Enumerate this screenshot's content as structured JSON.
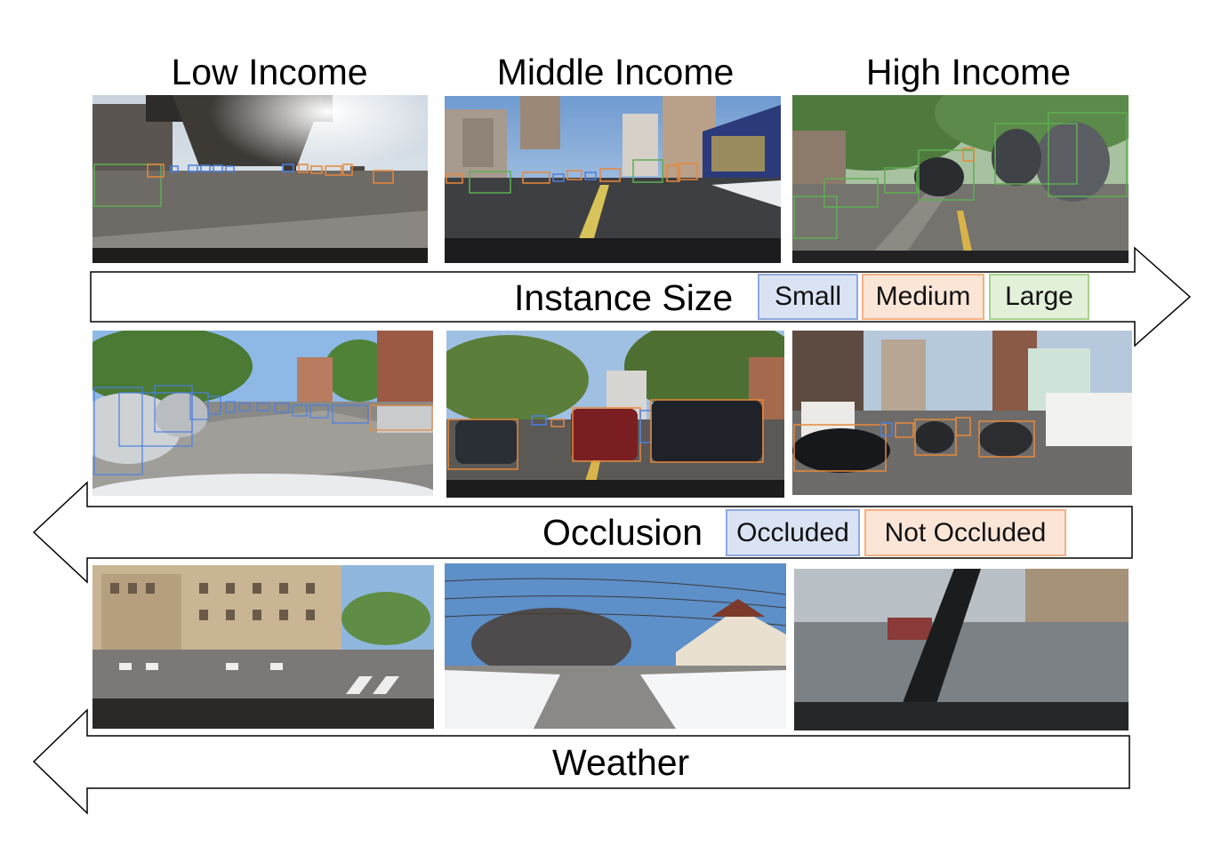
{
  "columns": [
    "Low Income",
    "Middle Income",
    "High Income"
  ],
  "arrows": {
    "instance_size": {
      "label": "Instance Size",
      "direction": "right",
      "chips": [
        {
          "text": "Small",
          "color": "#dae3f3"
        },
        {
          "text": "Medium",
          "color": "#fbe5d6"
        },
        {
          "text": "Large",
          "color": "#e2f0d9"
        }
      ]
    },
    "occlusion": {
      "label": "Occlusion",
      "direction": "left",
      "chips": [
        {
          "text": "Occluded",
          "color": "#dae3f3"
        },
        {
          "text": "Not Occluded",
          "color": "#fbe5d6"
        }
      ]
    },
    "weather": {
      "label": "Weather",
      "direction": "left"
    }
  },
  "box_colors": {
    "small": "#4a7fe0",
    "medium": "#e8883a",
    "large": "#5fae52"
  }
}
